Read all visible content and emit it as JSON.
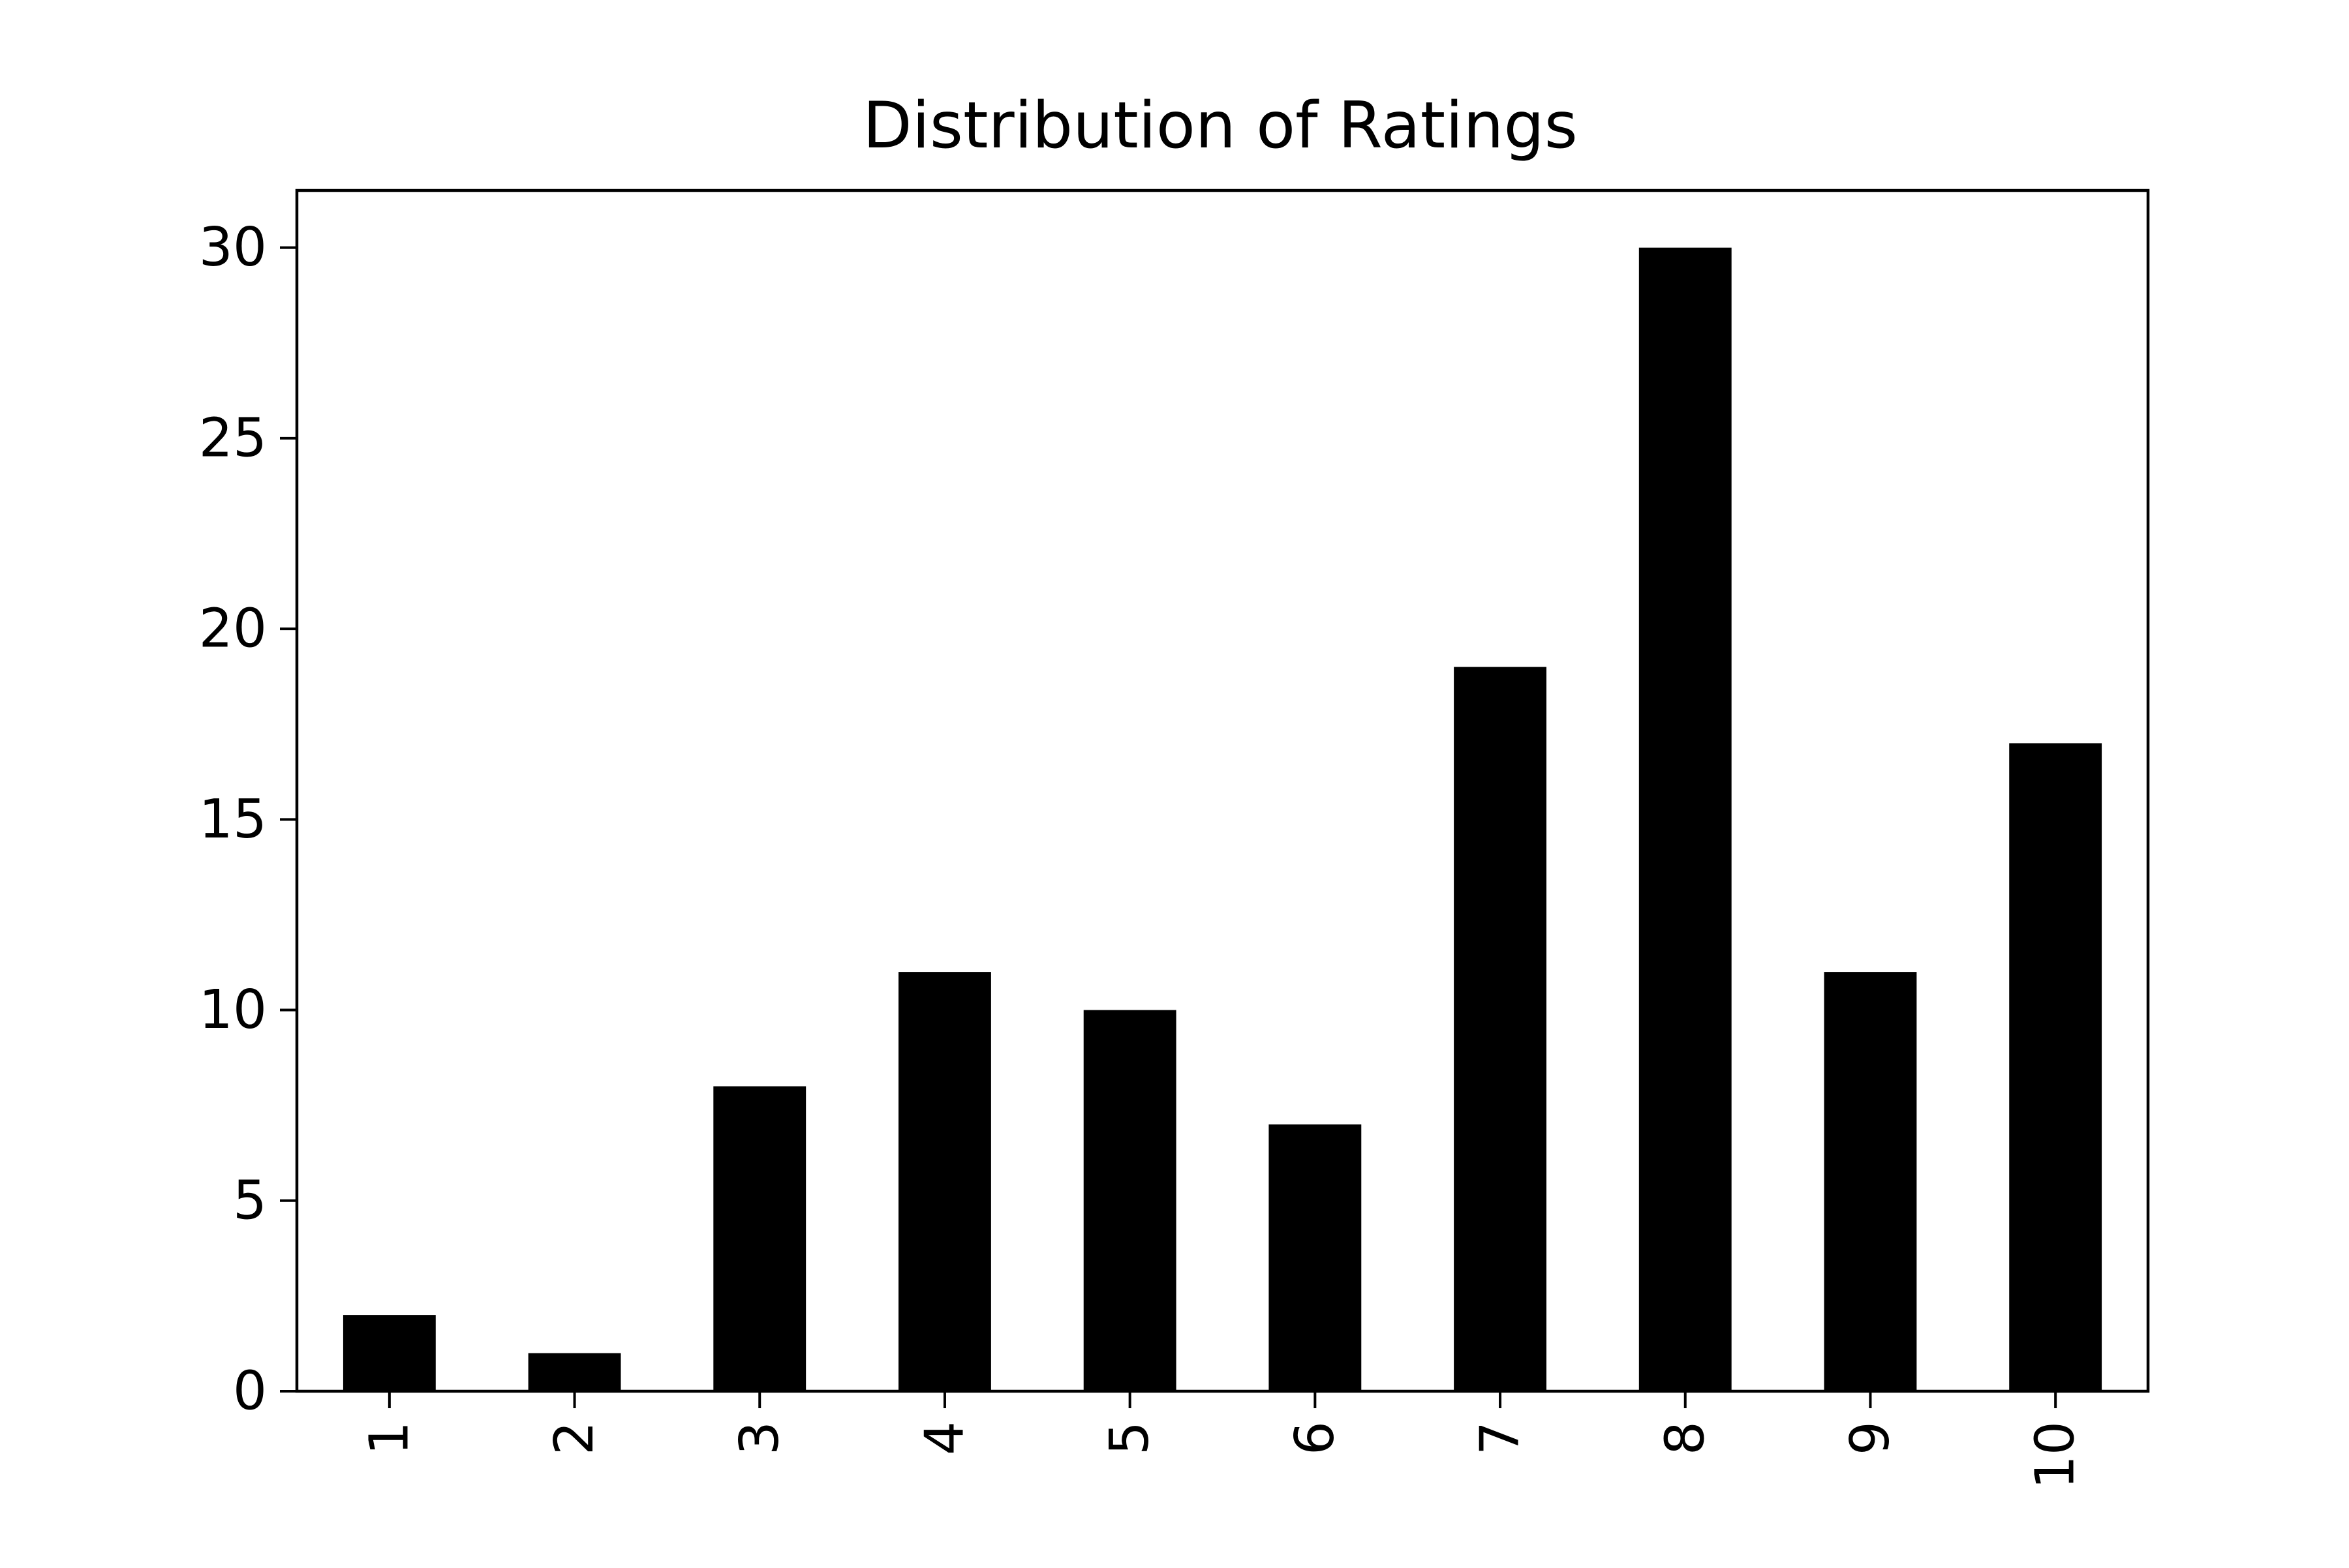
{
  "chart_data": {
    "type": "bar",
    "title": "Distribution of Ratings",
    "xlabel": "",
    "ylabel": "",
    "categories": [
      "1",
      "2",
      "3",
      "4",
      "5",
      "6",
      "7",
      "8",
      "9",
      "10"
    ],
    "values": [
      2,
      1,
      8,
      11,
      10,
      7,
      19,
      30,
      11,
      17
    ],
    "ylim": [
      0,
      31.5
    ],
    "yticks": [
      0,
      5,
      10,
      15,
      20,
      25,
      30
    ],
    "grid": false,
    "legend": "none",
    "bar_color": "#000000",
    "x_tick_rotation": "vertical"
  }
}
